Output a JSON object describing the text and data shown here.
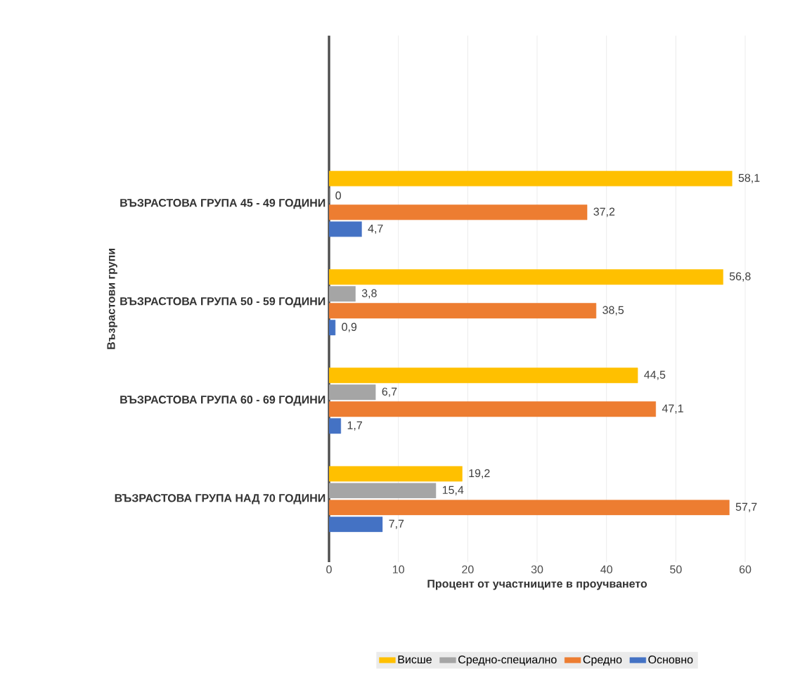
{
  "chart_data": {
    "type": "bar",
    "orientation": "horizontal",
    "xlabel": "Процент от участниците в проучването",
    "ylabel": "Възрастови групи",
    "categories": [
      "ВЪЗРАСТОВА ГРУПА 45 - 49 ГОДИНИ",
      "ВЪЗРАСТОВА ГРУПА 50 - 59 ГОДИНИ",
      "ВЪЗРАСТОВА ГРУПА 60 - 69 ГОДИНИ",
      "ВЪЗРАСТОВА ГРУПА НАД 70 ГОДИНИ"
    ],
    "series": [
      {
        "name": "Висше",
        "color": "#ffc000",
        "values": [
          58.1,
          56.8,
          44.5,
          19.2
        ],
        "value_labels": [
          "58,1",
          "56,8",
          "44,5",
          "19,2"
        ]
      },
      {
        "name": "Средно-специално",
        "color": "#a5a5a5",
        "values": [
          0,
          3.8,
          6.7,
          15.4
        ],
        "value_labels": [
          "0",
          "3,8",
          "6,7",
          "15,4"
        ]
      },
      {
        "name": "Средно",
        "color": "#ed7d31",
        "values": [
          37.2,
          38.5,
          47.1,
          57.7
        ],
        "value_labels": [
          "37,2",
          "38,5",
          "47,1",
          "57,7"
        ]
      },
      {
        "name": "Основно",
        "color": "#4472c4",
        "values": [
          4.7,
          0.9,
          1.7,
          7.7
        ],
        "value_labels": [
          "4,7",
          "0,9",
          "1,7",
          "7,7"
        ]
      }
    ],
    "xlim": [
      0,
      60
    ],
    "xticks": [
      0,
      10,
      20,
      30,
      40,
      50,
      60
    ],
    "grid": "x",
    "legend": "bottom"
  }
}
